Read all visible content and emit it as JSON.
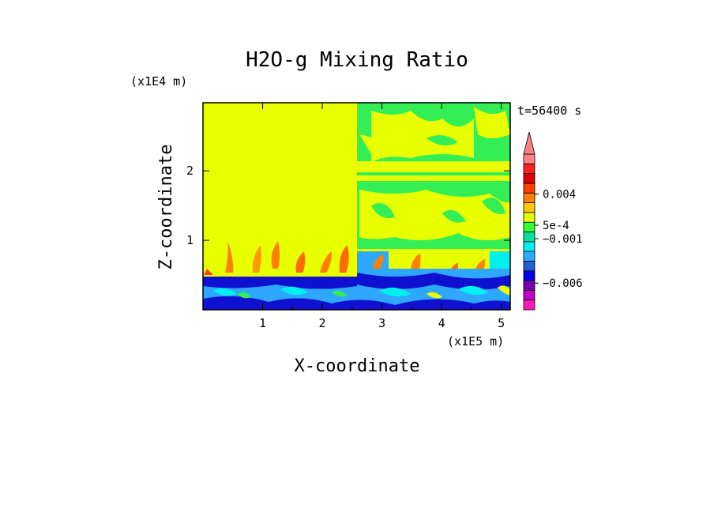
{
  "chart_data": {
    "type": "heatmap",
    "title": "H2O-g Mixing Ratio",
    "xlabel": "X-coordinate",
    "ylabel": "Z-coordinate",
    "x_scale_label": "(x1E5 m)",
    "y_scale_label": "(x1E4 m)",
    "time_label": "t=56400 s",
    "xlim": [
      0,
      5.15
    ],
    "ylim": [
      0,
      2.98
    ],
    "x_ticks": [
      1,
      2,
      3,
      4,
      5
    ],
    "x_tick_labels": [
      "1",
      "2",
      "3",
      "4",
      "5"
    ],
    "y_ticks": [
      1,
      2
    ],
    "y_tick_labels": [
      "1",
      "2"
    ],
    "colorbar": {
      "levels": [
        "#ff1ab8",
        "#c400c8",
        "#7a00b0",
        "#0000e6",
        "#1f5fd8",
        "#2ea8ff",
        "#00f0f0",
        "#00e0a0",
        "#33ff33",
        "#e8ff00",
        "#ffc800",
        "#ff8000",
        "#ff3c00",
        "#e00000",
        "#ff2020",
        "#ff8080"
      ],
      "labels": [
        {
          "text": "0.004",
          "value": 0.004
        },
        {
          "text": "5e-4",
          "value": 0.0005
        },
        {
          "text": "−0.001",
          "value": -0.001
        },
        {
          "text": "−0.006",
          "value": -0.006
        }
      ],
      "extend": "max"
    },
    "regions": [
      {
        "name": "upper domain",
        "x": [
          0,
          5.15
        ],
        "z": [
          0.55,
          2.98
        ],
        "value_class": "~0 (yellow)"
      },
      {
        "name": "right upper banded field",
        "x": [
          2.6,
          5.15
        ],
        "z": [
          0.5,
          2.98
        ],
        "value_class": "green/yellow mix"
      },
      {
        "name": "boundary layer",
        "x": [
          0,
          5.15
        ],
        "z": [
          0,
          0.55
        ],
        "value_class": "negative (blue/cyan)"
      }
    ]
  }
}
